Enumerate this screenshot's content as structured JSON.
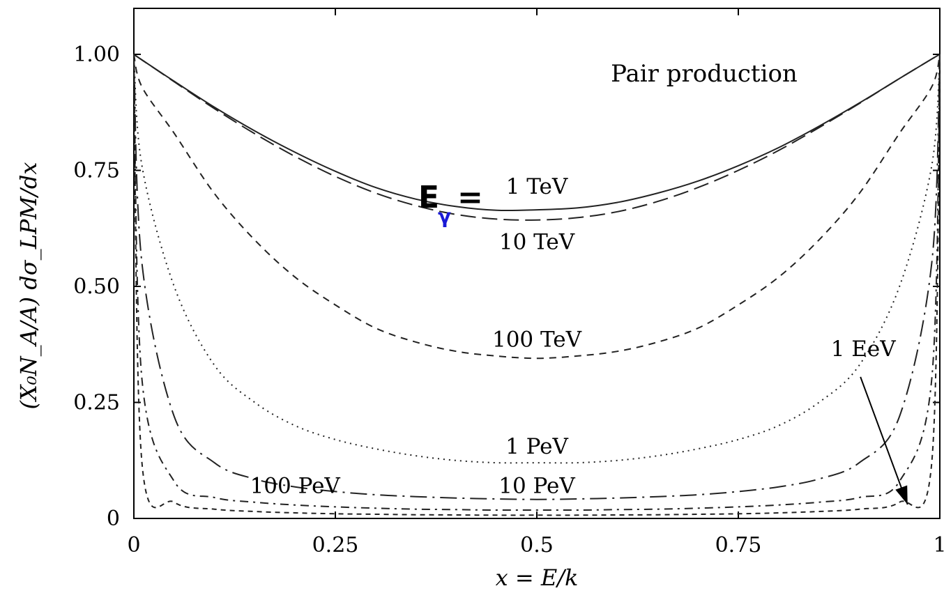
{
  "chart_data": {
    "type": "line",
    "title": "Pair production",
    "xlabel": "x = E/k",
    "ylabel": "(X₀N_A/A) dσ_LPM/dx",
    "xlim": [
      0,
      1
    ],
    "ylim": [
      0,
      1.0
    ],
    "x_ticks": [
      0,
      0.25,
      0.5,
      0.75,
      1
    ],
    "x_tick_labels": [
      "0",
      "0.25",
      "0.5",
      "0.75",
      "1"
    ],
    "y_ticks": [
      0,
      0.25,
      0.5,
      0.75,
      1.0
    ],
    "y_tick_labels": [
      "0",
      "0.25",
      "0.50",
      "0.75",
      "1.00"
    ],
    "grid": false,
    "legend": "none (curves labeled inline)",
    "energy_prefix": "E",
    "energy_sub": "γ",
    "energy_eq": "=",
    "x": [
      0,
      0.01,
      0.05,
      0.1,
      0.15,
      0.2,
      0.25,
      0.3,
      0.35,
      0.4,
      0.45,
      0.5,
      0.55,
      0.6,
      0.65,
      0.7,
      0.75,
      0.8,
      0.85,
      0.9,
      0.95,
      0.99,
      1.0
    ],
    "series": [
      {
        "name": "1 TeV",
        "style": "solid",
        "values": [
          1.0,
          0.988,
          0.942,
          0.886,
          0.835,
          0.789,
          0.748,
          0.713,
          0.688,
          0.672,
          0.664,
          0.665,
          0.669,
          0.681,
          0.701,
          0.727,
          0.76,
          0.799,
          0.845,
          0.895,
          0.948,
          0.99,
          1.0
        ]
      },
      {
        "name": "10 TeV",
        "style": "longdash",
        "values": [
          1.0,
          0.988,
          0.941,
          0.883,
          0.829,
          0.78,
          0.737,
          0.701,
          0.674,
          0.655,
          0.645,
          0.643,
          0.648,
          0.661,
          0.683,
          0.713,
          0.75,
          0.793,
          0.842,
          0.894,
          0.948,
          0.99,
          1.0
        ]
      },
      {
        "name": "100 TeV",
        "style": "shortdash",
        "values": [
          1.0,
          0.93,
          0.83,
          0.7,
          0.6,
          0.52,
          0.46,
          0.41,
          0.38,
          0.36,
          0.35,
          0.345,
          0.35,
          0.36,
          0.38,
          0.41,
          0.46,
          0.52,
          0.6,
          0.7,
          0.83,
          0.93,
          1.0
        ]
      },
      {
        "name": "1 PeV",
        "style": "dotted",
        "values": [
          1.0,
          0.76,
          0.5,
          0.33,
          0.25,
          0.2,
          0.17,
          0.15,
          0.135,
          0.125,
          0.12,
          0.12,
          0.12,
          0.125,
          0.135,
          0.15,
          0.17,
          0.2,
          0.25,
          0.33,
          0.5,
          0.76,
          1.0
        ]
      },
      {
        "name": "10 PeV",
        "style": "dashdot-long",
        "values": [
          1.0,
          0.55,
          0.22,
          0.12,
          0.085,
          0.068,
          0.058,
          0.051,
          0.047,
          0.044,
          0.042,
          0.041,
          0.042,
          0.044,
          0.047,
          0.051,
          0.058,
          0.068,
          0.085,
          0.12,
          0.22,
          0.55,
          1.0
        ]
      },
      {
        "name": "100 PeV",
        "style": "dashdot",
        "values": [
          1.0,
          0.3,
          0.08,
          0.045,
          0.035,
          0.029,
          0.025,
          0.022,
          0.02,
          0.019,
          0.018,
          0.018,
          0.018,
          0.019,
          0.02,
          0.022,
          0.025,
          0.029,
          0.035,
          0.045,
          0.08,
          0.3,
          1.0
        ]
      },
      {
        "name": "1 EeV",
        "style": "fine-dash",
        "values": [
          1.0,
          0.12,
          0.035,
          0.02,
          0.015,
          0.012,
          0.01,
          0.009,
          0.008,
          0.0075,
          0.007,
          0.007,
          0.007,
          0.0075,
          0.008,
          0.009,
          0.01,
          0.012,
          0.015,
          0.02,
          0.035,
          0.12,
          1.0
        ]
      }
    ],
    "annotations": [
      {
        "text": "1 TeV",
        "x": 0.5,
        "y": 0.7
      },
      {
        "text": "10 TeV",
        "x": 0.5,
        "y": 0.58
      },
      {
        "text": "100 TeV",
        "x": 0.5,
        "y": 0.37
      },
      {
        "text": "1 PeV",
        "x": 0.5,
        "y": 0.14
      },
      {
        "text": "10 PeV",
        "x": 0.5,
        "y": 0.055
      },
      {
        "text": "100 PeV",
        "x": 0.2,
        "y": 0.055
      },
      {
        "text": "1 EeV",
        "x": 0.905,
        "y": 0.35,
        "arrow_to": [
          0.96,
          0.03
        ]
      }
    ]
  }
}
